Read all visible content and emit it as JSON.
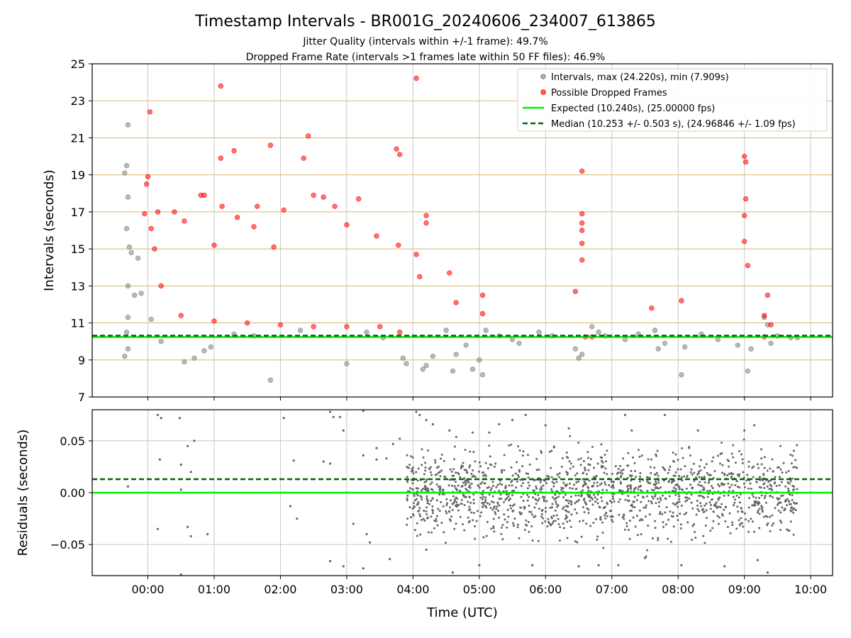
{
  "figure": {
    "title": "Timestamp Intervals - BR001G_20240606_234007_613865",
    "subtitle_1": "Jitter Quality (intervals within +/-1 frame): 49.7%",
    "subtitle_2": "Dropped Frame Rate (intervals >1 frames late within 50 FF files): 46.9%"
  },
  "chart_data": [
    {
      "type": "scatter",
      "panel": "top",
      "ylabel": "Intervals (seconds)",
      "xlabel": "",
      "xlim_hours": [
        -0.84,
        10.33
      ],
      "ylim": [
        7,
        25
      ],
      "yticks": [
        7,
        9,
        11,
        13,
        15,
        17,
        19,
        21,
        23,
        25
      ],
      "ytick_labels": [
        "7",
        "9",
        "11",
        "13",
        "15",
        "17",
        "19",
        "21",
        "23",
        "25"
      ],
      "x_grid_hours": [
        0,
        1,
        2,
        3,
        4,
        5,
        6,
        7,
        8,
        9,
        10
      ],
      "grid": true,
      "legend_position": "top-right",
      "colors": {
        "intervals": "#808080",
        "dropped": "#ff0000",
        "expected": "#00ee00",
        "median": "#006400",
        "hgrid": "#d4b86a",
        "vgrid": "#c8c8c8"
      },
      "lines": {
        "expected_value": 10.24,
        "median_value": 10.253
      },
      "legend": [
        {
          "label": "Intervals, max (24.220s), min (7.909s)",
          "marker": "circle",
          "color": "#808080"
        },
        {
          "label": "Possible Dropped Frames",
          "marker": "circle",
          "color": "#ff0000"
        },
        {
          "label": "Expected (10.240s), (25.00000 fps)",
          "marker": "solid-line",
          "color": "#00ee00"
        },
        {
          "label": "Median (10.253 +/- 0.503 s), (24.96846 +/- 1.09 fps)",
          "marker": "dashed-line",
          "color": "#006400"
        }
      ],
      "series": [
        {
          "name": "Intervals, max (24.220s), min (7.909s)",
          "points": [
            [
              -0.3,
              21.7
            ],
            [
              -0.32,
              19.5
            ],
            [
              -0.35,
              19.1
            ],
            [
              -0.3,
              17.8
            ],
            [
              -0.32,
              16.1
            ],
            [
              -0.28,
              15.1
            ],
            [
              -0.25,
              14.8
            ],
            [
              -0.3,
              13.0
            ],
            [
              -0.2,
              12.5
            ],
            [
              -0.3,
              11.3
            ],
            [
              -0.32,
              10.5
            ],
            [
              -0.35,
              9.2
            ],
            [
              -0.3,
              9.6
            ],
            [
              -0.15,
              14.5
            ],
            [
              -0.1,
              12.6
            ],
            [
              0.05,
              11.2
            ],
            [
              0.2,
              10.0
            ],
            [
              0.55,
              8.9
            ],
            [
              0.7,
              9.1
            ],
            [
              0.85,
              9.5
            ],
            [
              0.95,
              9.7
            ],
            [
              1.3,
              10.4
            ],
            [
              1.6,
              10.3
            ],
            [
              1.85,
              7.91
            ],
            [
              2.3,
              10.6
            ],
            [
              3.0,
              8.8
            ],
            [
              3.3,
              10.5
            ],
            [
              3.55,
              10.2
            ],
            [
              3.85,
              9.1
            ],
            [
              3.9,
              8.8
            ],
            [
              4.15,
              8.5
            ],
            [
              4.2,
              8.7
            ],
            [
              4.3,
              9.2
            ],
            [
              4.5,
              10.6
            ],
            [
              4.6,
              8.4
            ],
            [
              4.65,
              9.3
            ],
            [
              4.8,
              9.8
            ],
            [
              4.9,
              8.5
            ],
            [
              5.0,
              9.0
            ],
            [
              5.05,
              8.2
            ],
            [
              5.1,
              10.6
            ],
            [
              5.3,
              10.3
            ],
            [
              5.5,
              10.1
            ],
            [
              5.6,
              9.9
            ],
            [
              5.9,
              10.5
            ],
            [
              6.1,
              10.3
            ],
            [
              6.45,
              9.6
            ],
            [
              6.5,
              9.1
            ],
            [
              6.55,
              9.3
            ],
            [
              6.7,
              10.8
            ],
            [
              6.8,
              10.5
            ],
            [
              6.9,
              10.3
            ],
            [
              7.2,
              10.1
            ],
            [
              7.4,
              10.4
            ],
            [
              7.65,
              10.6
            ],
            [
              7.7,
              9.6
            ],
            [
              7.8,
              9.9
            ],
            [
              8.05,
              8.2
            ],
            [
              8.1,
              9.7
            ],
            [
              8.35,
              10.4
            ],
            [
              8.6,
              10.1
            ],
            [
              8.9,
              9.8
            ],
            [
              9.05,
              8.4
            ],
            [
              9.1,
              9.6
            ],
            [
              9.3,
              11.3
            ],
            [
              9.35,
              10.9
            ],
            [
              9.4,
              9.9
            ],
            [
              9.5,
              10.3
            ],
            [
              9.7,
              10.2
            ],
            [
              9.8,
              10.2
            ]
          ]
        },
        {
          "name": "Possible Dropped Frames",
          "points": [
            [
              0.03,
              22.4
            ],
            [
              0.0,
              18.9
            ],
            [
              -0.02,
              18.5
            ],
            [
              0.15,
              17.0
            ],
            [
              -0.05,
              16.9
            ],
            [
              0.05,
              16.1
            ],
            [
              0.1,
              15.0
            ],
            [
              0.2,
              13.0
            ],
            [
              0.4,
              17.0
            ],
            [
              0.55,
              16.5
            ],
            [
              0.8,
              17.9
            ],
            [
              0.85,
              17.9
            ],
            [
              1.0,
              15.2
            ],
            [
              1.1,
              23.8
            ],
            [
              1.12,
              17.3
            ],
            [
              1.1,
              19.9
            ],
            [
              1.3,
              20.3
            ],
            [
              1.35,
              16.7
            ],
            [
              1.6,
              16.2
            ],
            [
              1.65,
              17.3
            ],
            [
              1.85,
              20.6
            ],
            [
              1.9,
              15.1
            ],
            [
              2.05,
              17.1
            ],
            [
              2.35,
              19.9
            ],
            [
              2.42,
              21.1
            ],
            [
              2.5,
              17.9
            ],
            [
              2.65,
              17.8
            ],
            [
              2.82,
              17.3
            ],
            [
              3.0,
              16.3
            ],
            [
              3.18,
              17.7
            ],
            [
              3.45,
              15.7
            ],
            [
              3.75,
              20.4
            ],
            [
              3.8,
              20.1
            ],
            [
              3.78,
              15.2
            ],
            [
              4.05,
              24.22
            ],
            [
              4.05,
              14.7
            ],
            [
              4.1,
              13.5
            ],
            [
              4.2,
              16.8
            ],
            [
              4.2,
              16.4
            ],
            [
              4.55,
              13.7
            ],
            [
              4.65,
              12.1
            ],
            [
              5.05,
              12.5
            ],
            [
              5.05,
              11.5
            ],
            [
              6.45,
              12.7
            ],
            [
              6.55,
              19.2
            ],
            [
              6.55,
              16.9
            ],
            [
              6.55,
              16.4
            ],
            [
              6.55,
              16.0
            ],
            [
              6.55,
              15.3
            ],
            [
              6.55,
              14.4
            ],
            [
              7.6,
              11.8
            ],
            [
              8.05,
              12.2
            ],
            [
              9.0,
              20.0
            ],
            [
              9.02,
              19.7
            ],
            [
              9.02,
              17.7
            ],
            [
              9.0,
              16.8
            ],
            [
              9.0,
              15.4
            ],
            [
              9.05,
              14.1
            ],
            [
              9.35,
              12.5
            ],
            [
              9.3,
              11.4
            ],
            [
              9.4,
              10.9
            ],
            [
              0.5,
              11.4
            ],
            [
              1.0,
              11.1
            ],
            [
              1.5,
              11.0
            ],
            [
              2.0,
              10.9
            ],
            [
              2.5,
              10.8
            ],
            [
              3.0,
              10.8
            ],
            [
              3.5,
              10.8
            ],
            [
              3.8,
              10.5
            ],
            [
              6.6,
              10.25
            ],
            [
              6.7,
              10.25
            ],
            [
              9.3,
              10.25
            ]
          ]
        }
      ]
    },
    {
      "type": "scatter",
      "panel": "bottom",
      "ylabel": "Residuals (seconds)",
      "xlabel": "Time (UTC)",
      "xlim_hours": [
        -0.84,
        10.33
      ],
      "ylim": [
        -0.08,
        0.08
      ],
      "yticks": [
        -0.05,
        0.0,
        0.05
      ],
      "ytick_labels": [
        "−0.05",
        "0.00",
        "0.05"
      ],
      "xticks_hours": [
        0,
        1,
        2,
        3,
        4,
        5,
        6,
        7,
        8,
        9,
        10
      ],
      "xtick_labels": [
        "00:00",
        "01:00",
        "02:00",
        "03:00",
        "04:00",
        "05:00",
        "06:00",
        "07:00",
        "08:00",
        "09:00",
        "10:00"
      ],
      "grid": true,
      "colors": {
        "points": "#666666",
        "zero_line": "#00ee00",
        "median_line": "#006400",
        "grid": "#c8c8c8"
      },
      "lines": {
        "zero_value": 0.0,
        "median_offset": 0.013
      },
      "series": [
        {
          "name": "Residuals",
          "points": [
            [
              -0.3,
              0.006
            ],
            [
              0.15,
              0.075
            ],
            [
              0.2,
              0.072
            ],
            [
              0.18,
              0.032
            ],
            [
              0.15,
              0.013
            ],
            [
              0.15,
              -0.035
            ],
            [
              0.48,
              0.072
            ],
            [
              0.5,
              0.027
            ],
            [
              0.5,
              0.003
            ],
            [
              0.5,
              -0.079
            ],
            [
              0.6,
              0.045
            ],
            [
              0.7,
              0.05
            ],
            [
              0.65,
              0.02
            ],
            [
              0.6,
              -0.033
            ],
            [
              0.65,
              -0.042
            ],
            [
              0.9,
              -0.04
            ],
            [
              2.05,
              0.072
            ],
            [
              2.15,
              -0.013
            ],
            [
              2.2,
              0.031
            ],
            [
              2.25,
              -0.025
            ],
            [
              2.65,
              0.03
            ],
            [
              2.75,
              0.028
            ],
            [
              2.75,
              0.078
            ],
            [
              2.8,
              0.073
            ],
            [
              2.9,
              0.073
            ],
            [
              2.95,
              0.06
            ],
            [
              2.75,
              -0.066
            ],
            [
              2.95,
              -0.071
            ],
            [
              3.1,
              -0.03
            ],
            [
              3.25,
              0.036
            ],
            [
              3.3,
              -0.04
            ],
            [
              3.25,
              0.079
            ],
            [
              3.35,
              -0.048
            ],
            [
              3.25,
              -0.073
            ],
            [
              3.45,
              0.043
            ],
            [
              3.45,
              0.032
            ],
            [
              3.6,
              0.033
            ],
            [
              3.65,
              -0.064
            ],
            [
              3.7,
              0.047
            ],
            [
              3.8,
              0.052
            ],
            [
              4.05,
              0.078
            ],
            [
              4.1,
              0.075
            ],
            [
              4.2,
              0.07
            ],
            [
              4.2,
              -0.055
            ],
            [
              4.3,
              0.066
            ],
            [
              4.55,
              0.06
            ],
            [
              4.6,
              -0.077
            ],
            [
              4.9,
              0.058
            ],
            [
              5.0,
              -0.07
            ],
            [
              5.15,
              0.058
            ],
            [
              5.3,
              0.066
            ],
            [
              5.5,
              0.07
            ],
            [
              5.7,
              0.075
            ],
            [
              5.8,
              -0.07
            ],
            [
              6.0,
              0.065
            ],
            [
              6.35,
              0.062
            ],
            [
              6.5,
              -0.071
            ],
            [
              6.8,
              -0.07
            ],
            [
              7.1,
              -0.07
            ],
            [
              7.2,
              0.075
            ],
            [
              7.3,
              0.06
            ],
            [
              7.5,
              -0.063
            ],
            [
              7.8,
              0.075
            ],
            [
              8.05,
              -0.07
            ],
            [
              8.3,
              0.06
            ],
            [
              8.7,
              -0.071
            ],
            [
              9.0,
              0.06
            ],
            [
              9.15,
              0.065
            ],
            [
              9.2,
              -0.065
            ],
            [
              9.35,
              -0.077
            ]
          ]
        }
      ]
    }
  ]
}
